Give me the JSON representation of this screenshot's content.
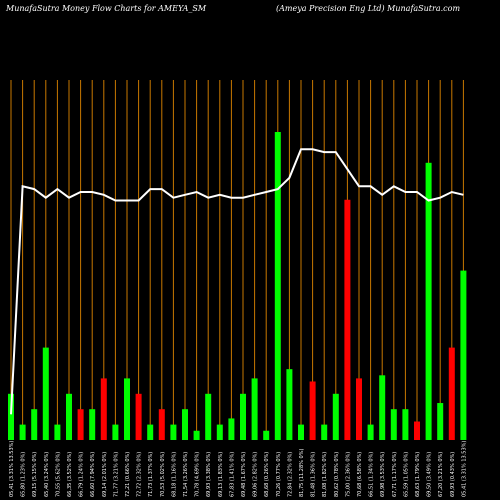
{
  "header": {
    "left": "MunafaSutra  Money Flow  Charts for AMEYA_SM",
    "right": "(Ameya  Precision  Eng Ltd) MunafaSutra.com"
  },
  "chart_data": {
    "type": "bar",
    "title": "Money Flow Charts for AMEYA_SM",
    "grid": true,
    "ylim": [
      0,
      100
    ],
    "colors": {
      "up": "#00ff00",
      "down": "#ff0000",
      "grid": "#c87800",
      "line": "#ffffff",
      "background": "#000000"
    },
    "categories": [
      "05,41 (3.31% 13.53%)",
      "65,80 (1.23% 0%)",
      "69,15 (5.15% 0%)",
      "65,40 (3.24% 0%)",
      "70,55 (5.62% 0%)",
      "66,35 (3.52% 0%)",
      "66,79 (1.24% 0%)",
      "66,60 (7.94% 0%)",
      "69,14 (2.01% 0%)",
      "71,77 (3.21% 0%)",
      "72,21 (0.66% 0%)",
      "72,72 (2.32% 0%)",
      "71,73 (1.37% 0%)",
      "70,53 (5.02% 0%)",
      "68,18 (1.16% 0%)",
      "71,54 (3.26% 0%)",
      "70,78 (4.69% 0%)",
      "69,93 (3.38% 0%)",
      "69,13 (1.83% 0%)",
      "67,83 (1.41% 0%)",
      "69,48 (1.67% 0%)",
      "69,06 (2.82% 0%)",
      "68,68 (0.26% 0%)",
      "70,26 (0.77% 0%)",
      "72,84 (2.32% 0%)",
      "81,75 (11.28% 0%)",
      "81,48 (1.36% 0%)",
      "81,08 (1.82% 0%)",
      "80,62 (0.78% 0%)",
      "75,00 (2.36% 0%)",
      "70,68 (6.58% 0%)",
      "66,51 (1.34% 0%)",
      "69,98 (3.53% 0%)",
      "67,71 (1.17% 0%)",
      "65,59 (1.05% 0%)",
      "68,63 (1.79% 0%)",
      "69,50 (3.49% 0%)",
      "67,20 (3.21% 0%)",
      "69,93 (0.43% 0%)",
      "05,41 (3.31% 13.53%)"
    ],
    "bars": [
      15,
      5,
      10,
      30,
      5,
      15,
      10,
      10,
      20,
      5,
      20,
      15,
      5,
      10,
      5,
      10,
      3,
      15,
      5,
      7,
      15,
      20,
      3,
      100,
      23,
      5,
      19,
      5,
      15,
      78,
      20,
      5,
      21,
      10,
      10,
      6,
      90,
      12,
      30,
      55
    ],
    "bar_colors": [
      "up",
      "up",
      "up",
      "up",
      "up",
      "up",
      "down",
      "up",
      "down",
      "up",
      "up",
      "down",
      "up",
      "down",
      "up",
      "up",
      "up",
      "up",
      "up",
      "up",
      "up",
      "up",
      "up",
      "up",
      "up",
      "up",
      "down",
      "up",
      "up",
      "down",
      "down",
      "up",
      "up",
      "up",
      "up",
      "down",
      "up",
      "up",
      "down",
      "up"
    ],
    "line": [
      2,
      82,
      81,
      78,
      81,
      78,
      80,
      80,
      79,
      77,
      77,
      77,
      81,
      81,
      78,
      79,
      80,
      78,
      79,
      78,
      78,
      79,
      80,
      81,
      85,
      95,
      95,
      94,
      94,
      88,
      82,
      82,
      79,
      82,
      80,
      80,
      77,
      78,
      80,
      79
    ]
  }
}
